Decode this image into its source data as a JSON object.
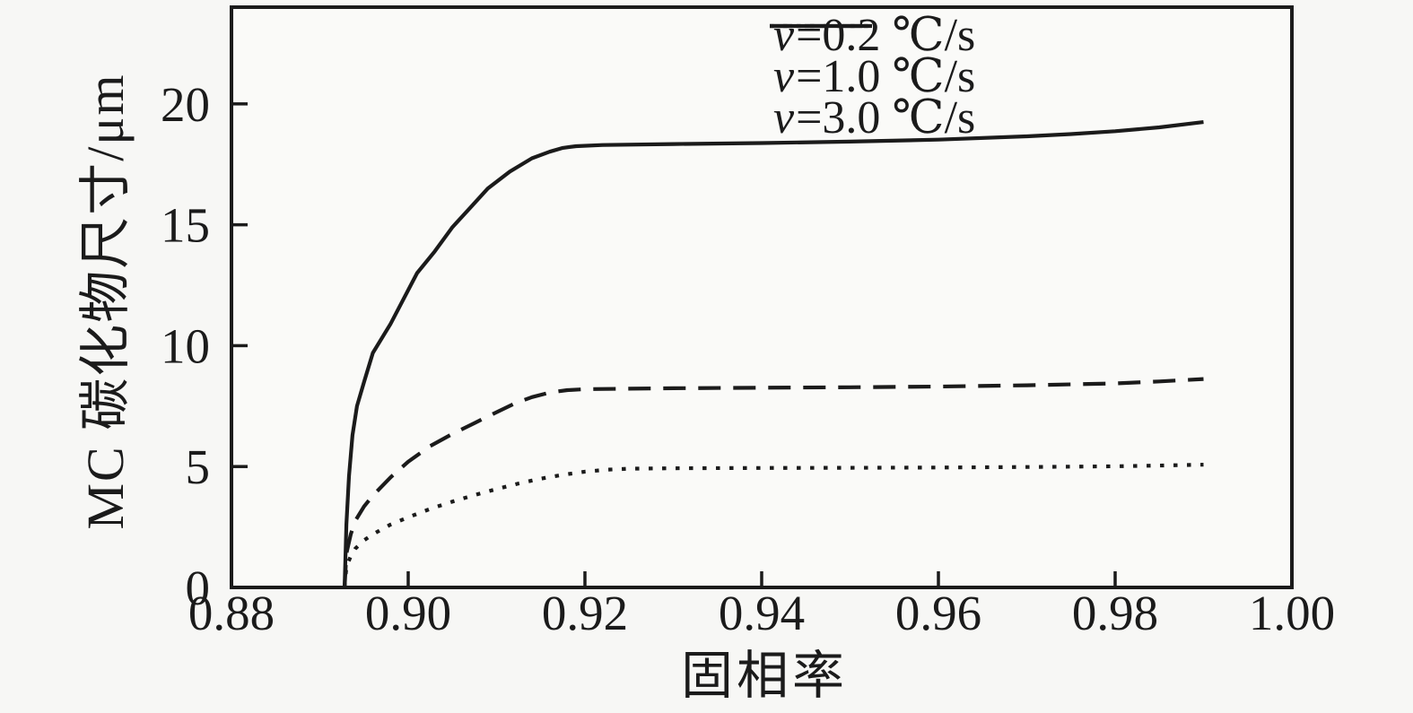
{
  "figure": {
    "background": "#f7f7f5",
    "plot_background": "#fafaf8",
    "ink_color": "#1b1b1b"
  },
  "chart_data": {
    "type": "line",
    "title": "",
    "xlabel": "固相率",
    "ylabel": "MC 碳化物尺寸/μm",
    "xlim": [
      0.88,
      1.0
    ],
    "ylim": [
      0,
      24
    ],
    "grid": false,
    "legend_position": "top-right-inside",
    "xticks": {
      "values": [
        0.88,
        0.9,
        0.92,
        0.94,
        0.96,
        0.98,
        1.0
      ],
      "labels": [
        "0.88",
        "0.90",
        "0.92",
        "0.94",
        "0.96",
        "0.98",
        "1.00"
      ]
    },
    "yticks": {
      "values": [
        0,
        5,
        10,
        15,
        20
      ],
      "labels": [
        "0",
        "5",
        "10",
        "15",
        "20"
      ]
    },
    "series": [
      {
        "name": "v=0.2 ℃/s",
        "style": "solid",
        "points": [
          [
            0.8928,
            0
          ],
          [
            0.893,
            2.6
          ],
          [
            0.8933,
            4.6
          ],
          [
            0.8937,
            6.3
          ],
          [
            0.8942,
            7.5
          ],
          [
            0.895,
            8.5
          ],
          [
            0.896,
            9.7
          ],
          [
            0.898,
            10.9
          ],
          [
            0.901,
            13.0
          ],
          [
            0.903,
            13.9
          ],
          [
            0.905,
            14.9
          ],
          [
            0.907,
            15.7
          ],
          [
            0.909,
            16.5
          ],
          [
            0.9115,
            17.2
          ],
          [
            0.914,
            17.75
          ],
          [
            0.916,
            18.02
          ],
          [
            0.9175,
            18.18
          ],
          [
            0.919,
            18.25
          ],
          [
            0.922,
            18.3
          ],
          [
            0.93,
            18.34
          ],
          [
            0.94,
            18.38
          ],
          [
            0.95,
            18.44
          ],
          [
            0.96,
            18.52
          ],
          [
            0.97,
            18.66
          ],
          [
            0.975,
            18.75
          ],
          [
            0.98,
            18.87
          ],
          [
            0.985,
            19.03
          ],
          [
            0.99,
            19.25
          ]
        ]
      },
      {
        "name": "v=1.0 ℃/s",
        "style": "dashed",
        "points": [
          [
            0.8928,
            0
          ],
          [
            0.893,
            1.4
          ],
          [
            0.8935,
            2.2
          ],
          [
            0.894,
            2.75
          ],
          [
            0.895,
            3.35
          ],
          [
            0.896,
            3.8
          ],
          [
            0.898,
            4.55
          ],
          [
            0.9,
            5.2
          ],
          [
            0.9025,
            5.85
          ],
          [
            0.905,
            6.35
          ],
          [
            0.9075,
            6.8
          ],
          [
            0.91,
            7.25
          ],
          [
            0.912,
            7.6
          ],
          [
            0.914,
            7.87
          ],
          [
            0.916,
            8.06
          ],
          [
            0.918,
            8.16
          ],
          [
            0.92,
            8.2
          ],
          [
            0.93,
            8.24
          ],
          [
            0.94,
            8.26
          ],
          [
            0.95,
            8.28
          ],
          [
            0.96,
            8.31
          ],
          [
            0.97,
            8.36
          ],
          [
            0.98,
            8.44
          ],
          [
            0.985,
            8.52
          ],
          [
            0.99,
            8.62
          ]
        ]
      },
      {
        "name": "v=3.0 ℃/s",
        "style": "dotted",
        "points": [
          [
            0.8928,
            0
          ],
          [
            0.893,
            0.85
          ],
          [
            0.8935,
            1.3
          ],
          [
            0.894,
            1.6
          ],
          [
            0.895,
            1.95
          ],
          [
            0.896,
            2.2
          ],
          [
            0.898,
            2.6
          ],
          [
            0.9,
            2.9
          ],
          [
            0.9025,
            3.25
          ],
          [
            0.905,
            3.55
          ],
          [
            0.9075,
            3.82
          ],
          [
            0.91,
            4.07
          ],
          [
            0.9125,
            4.3
          ],
          [
            0.915,
            4.5
          ],
          [
            0.9175,
            4.66
          ],
          [
            0.92,
            4.79
          ],
          [
            0.9225,
            4.87
          ],
          [
            0.925,
            4.91
          ],
          [
            0.93,
            4.93
          ],
          [
            0.94,
            4.94
          ],
          [
            0.95,
            4.95
          ],
          [
            0.96,
            4.96
          ],
          [
            0.97,
            4.98
          ],
          [
            0.98,
            5.01
          ],
          [
            0.985,
            5.04
          ],
          [
            0.99,
            5.08
          ]
        ]
      }
    ]
  },
  "legend": {
    "items": [
      {
        "var": "v",
        "rest": "=0.2 ℃/s",
        "style": "solid"
      },
      {
        "var": "v",
        "rest": "=1.0 ℃/s",
        "style": "dashed"
      },
      {
        "var": "v",
        "rest": "=3.0 ℃/s",
        "style": "dotted"
      }
    ]
  }
}
